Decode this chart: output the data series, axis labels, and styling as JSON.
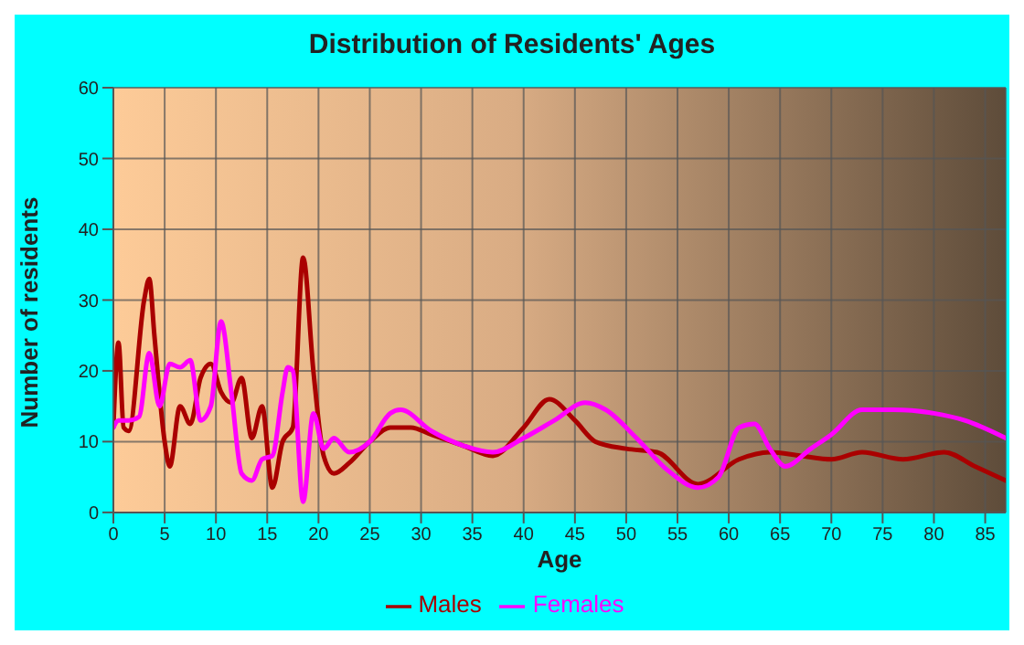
{
  "chart_data": {
    "type": "line",
    "title": "Distribution of Residents' Ages",
    "xlabel": "Age",
    "ylabel": "Number of residents",
    "xlim": [
      0,
      87
    ],
    "xticks": [
      0,
      5,
      10,
      15,
      20,
      25,
      30,
      35,
      40,
      45,
      50,
      55,
      60,
      65,
      70,
      75,
      80,
      85
    ],
    "ylim": [
      0,
      60
    ],
    "yticks": [
      0,
      10,
      20,
      30,
      40,
      50,
      60
    ],
    "grid": true,
    "legend": "bottom",
    "marker": "none",
    "line_style": "solid",
    "series": [
      {
        "name": "Males",
        "color": "#aa0000",
        "x": [
          0,
          0.5,
          1,
          1.5,
          3,
          3.5,
          4,
          5,
          5.5,
          6.5,
          7.5,
          8.5,
          9.5,
          10.5,
          11.5,
          12.5,
          13.5,
          14.5,
          15.5,
          16.5,
          17.5,
          18.5,
          19.5,
          20.5,
          21.5,
          23,
          25,
          27,
          29,
          31,
          34,
          37,
          40,
          42.5,
          45,
          47,
          50,
          53,
          57,
          61,
          64,
          67,
          70,
          73,
          77,
          81,
          84,
          87
        ],
        "values": [
          12,
          24,
          12,
          11.5,
          30,
          33,
          25,
          10,
          6.5,
          15,
          12.5,
          19,
          21,
          17,
          15.5,
          19,
          10.5,
          15,
          3.5,
          10,
          12,
          36,
          20,
          8,
          5.5,
          7,
          10,
          12,
          12,
          11,
          9.5,
          8,
          12,
          16,
          13,
          10,
          9,
          8.5,
          4,
          7.5,
          8.5,
          8,
          7.5,
          8.5,
          7.5,
          8.5,
          6.5,
          4.5
        ]
      },
      {
        "name": "Females",
        "color": "#ff00ff",
        "x": [
          0,
          0.5,
          1.5,
          2.5,
          3.5,
          4.5,
          5.5,
          6.5,
          7.5,
          8.5,
          9.5,
          10.5,
          11.5,
          12.5,
          13.5,
          14.5,
          15.5,
          16.5,
          17,
          17.5,
          18.5,
          19.5,
          20.5,
          21.5,
          23,
          25,
          27,
          28,
          31,
          34,
          37,
          40,
          43,
          46,
          48,
          51,
          54,
          57,
          59,
          61,
          62.5,
          64,
          65.5,
          68,
          70,
          73,
          76,
          80,
          83,
          87
        ],
        "values": [
          12,
          13,
          13,
          13.5,
          22.5,
          15,
          21,
          20.5,
          21.5,
          13,
          15,
          27,
          17,
          5.5,
          4.5,
          7.5,
          8,
          17,
          20.5,
          20,
          1.5,
          14,
          9,
          10.5,
          8.5,
          10,
          14,
          14.5,
          11.5,
          9.5,
          8.5,
          10.5,
          13,
          15.5,
          14.5,
          10.5,
          6,
          3.5,
          5,
          12,
          12.5,
          9,
          6.5,
          9,
          11,
          14.5,
          14.5,
          14,
          13,
          10.5
        ]
      }
    ]
  }
}
